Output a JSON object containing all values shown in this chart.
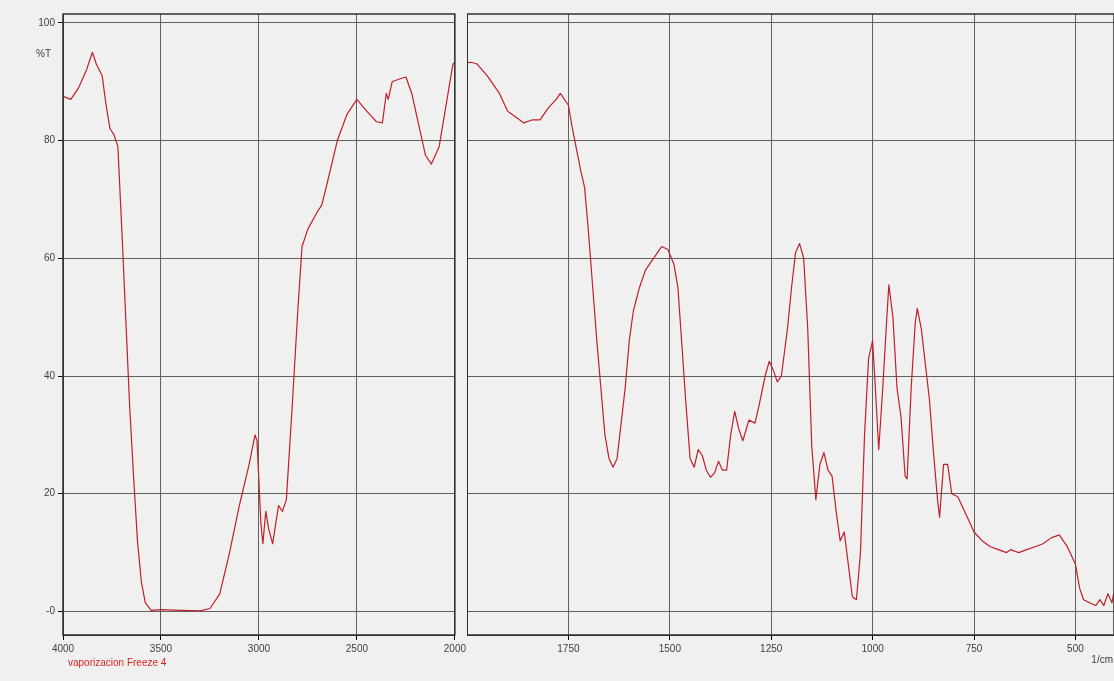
{
  "chart_data": [
    {
      "type": "line",
      "ylabel": "%T",
      "annotations": [
        "vaporizacion Freeze 4"
      ],
      "xlim": [
        4000,
        2000
      ],
      "xticks": [
        4000,
        3500,
        3000,
        2500,
        2000
      ],
      "ylim": [
        -4,
        101.5
      ],
      "yticks": [
        {
          "value": 0,
          "label": "-0"
        },
        20,
        40,
        60,
        80,
        100
      ],
      "grid": true,
      "marker": "none",
      "line_style": "solid",
      "series": [
        {
          "color": "#c0202a",
          "x": [
            4000,
            3960,
            3920,
            3880,
            3850,
            3830,
            3800,
            3780,
            3760,
            3740,
            3720,
            3700,
            3680,
            3660,
            3640,
            3620,
            3600,
            3580,
            3550,
            3500,
            3400,
            3300,
            3250,
            3200,
            3150,
            3100,
            3050,
            3020,
            3010,
            2990,
            2980,
            2965,
            2950,
            2930,
            2900,
            2880,
            2860,
            2830,
            2800,
            2780,
            2750,
            2700,
            2680,
            2650,
            2600,
            2550,
            2500,
            2450,
            2400,
            2370,
            2350,
            2340,
            2320,
            2280,
            2250,
            2220,
            2180,
            2150,
            2120,
            2080,
            2040,
            2010,
            2000
          ],
          "values": [
            87.5,
            87,
            89,
            92,
            95,
            93,
            91,
            86,
            82,
            81,
            79,
            65,
            50,
            35,
            23,
            12,
            5,
            1.5,
            0.2,
            0.3,
            0.2,
            0.1,
            0.5,
            3,
            10,
            18,
            25,
            30,
            29,
            15,
            11.5,
            17,
            14,
            11.5,
            18,
            17,
            19,
            35,
            52,
            62,
            65,
            68,
            69,
            73,
            80,
            84.5,
            87,
            85,
            83.2,
            83,
            88,
            87,
            90,
            90.5,
            90.8,
            88,
            82,
            77.5,
            76,
            79,
            87,
            93,
            93.2
          ]
        }
      ]
    },
    {
      "type": "line",
      "xlabel": "1/cm",
      "xlim": [
        2000,
        405
      ],
      "xticks": [
        1750,
        1500,
        1250,
        1000,
        750,
        500
      ],
      "ylim": [
        -4,
        101.5
      ],
      "yticks": [
        0,
        20,
        40,
        60,
        80,
        100
      ],
      "tick_labels": "x",
      "grid": true,
      "marker": "none",
      "line_style": "solid",
      "series": [
        {
          "color": "#c0202a",
          "x": [
            2000,
            1990,
            1975,
            1950,
            1920,
            1900,
            1880,
            1860,
            1840,
            1820,
            1800,
            1780,
            1770,
            1750,
            1740,
            1720,
            1710,
            1700,
            1690,
            1680,
            1670,
            1660,
            1650,
            1640,
            1630,
            1620,
            1610,
            1600,
            1590,
            1575,
            1560,
            1550,
            1530,
            1520,
            1505,
            1490,
            1480,
            1470,
            1460,
            1450,
            1440,
            1430,
            1420,
            1410,
            1400,
            1390,
            1380,
            1370,
            1360,
            1350,
            1340,
            1330,
            1320,
            1305,
            1290,
            1280,
            1265,
            1255,
            1245,
            1235,
            1225,
            1210,
            1200,
            1190,
            1180,
            1170,
            1160,
            1150,
            1140,
            1130,
            1120,
            1110,
            1100,
            1090,
            1080,
            1070,
            1060,
            1050,
            1040,
            1030,
            1020,
            1010,
            1000,
            995,
            985,
            975,
            965,
            960,
            950,
            940,
            930,
            920,
            915,
            905,
            895,
            890,
            880,
            870,
            860,
            850,
            840,
            835,
            825,
            815,
            805,
            790,
            770,
            750,
            730,
            710,
            690,
            670,
            660,
            640,
            620,
            600,
            580,
            560,
            540,
            520,
            500,
            490,
            480,
            460,
            450,
            440,
            430,
            420,
            410,
            406
          ],
          "values": [
            93.2,
            93.3,
            93,
            91,
            88,
            85,
            84,
            83,
            83.5,
            83.5,
            85.5,
            87,
            88,
            86,
            82,
            75,
            72,
            64,
            55,
            46,
            38,
            30,
            26,
            24.5,
            26,
            32,
            38,
            46,
            51,
            55,
            58,
            59,
            61,
            62,
            61.5,
            59,
            55,
            45,
            35,
            26,
            24.5,
            27.5,
            26.5,
            24,
            22.8,
            23.5,
            25.5,
            24,
            24,
            30,
            34,
            31,
            29,
            32.5,
            32,
            35,
            40,
            42.5,
            41,
            39,
            40,
            48,
            55,
            61,
            62.5,
            60,
            48,
            28,
            19,
            25,
            27,
            24,
            23,
            17,
            12,
            13.5,
            8,
            2.5,
            2,
            10,
            30,
            43,
            46,
            40,
            27.5,
            38,
            50,
            55.5,
            50,
            38,
            33,
            23,
            22.5,
            38,
            49,
            51.5,
            48,
            42,
            36,
            27,
            19,
            16,
            25,
            25,
            20,
            19.5,
            16.5,
            13.5,
            12,
            11,
            10.5,
            10,
            10.5,
            10,
            10.5,
            11,
            11.5,
            12.5,
            13,
            11,
            8,
            4,
            2,
            1.3,
            1,
            2,
            1,
            3,
            1.5,
            3
          ]
        }
      ]
    }
  ]
}
